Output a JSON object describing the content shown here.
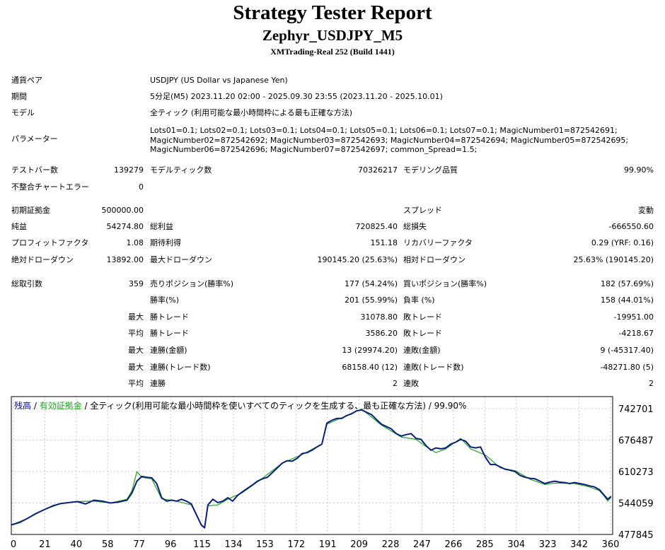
{
  "header": {
    "title": "Strategy Tester Report",
    "expert": "Zephyr_USDJPY_M5",
    "server": "XMTrading-Real 252 (Build 1441)"
  },
  "settings": {
    "symbol_label": "通貨ペア",
    "symbol_value": "USDJPY (US Dollar vs Japanese Yen)",
    "period_label": "期間",
    "period_value": "5分足(M5) 2023.11.20 02:00 - 2025.09.30 23:55 (2023.11.20 - 2025.10.01)",
    "model_label": "モデル",
    "model_value": "全ティック (利用可能な最小時間枠による最も正確な方法)",
    "params_label": "パラメーター",
    "params_value": "Lots01=0.1; Lots02=0.1; Lots03=0.1; Lots04=0.1; Lots05=0.1; Lots06=0.1; Lots07=0.1; MagicNumber01=872542691; MagicNumber02=872542692; MagicNumber03=872542693; MagicNumber04=872542694; MagicNumber05=872542695; MagicNumber06=872542696; MagicNumber07=872542697; common_Spread=1.5;"
  },
  "stats": {
    "bars_label": "テストバー数",
    "bars_value": "139279",
    "ticks_label": "モデルティック数",
    "ticks_value": "70326217",
    "quality_label": "モデリング品質",
    "quality_value": "99.90%",
    "mismatch_label": "不整合チャートエラー",
    "mismatch_value": "0",
    "deposit_label": "初期証拠金",
    "deposit_value": "500000.00",
    "spread_label": "スプレッド",
    "spread_value": "変動",
    "net_label": "純益",
    "net_value": "54274.80",
    "gross_profit_label": "総利益",
    "gross_profit_value": "720825.40",
    "gross_loss_label": "総損失",
    "gross_loss_value": "-666550.60",
    "pf_label": "プロフィットファクタ",
    "pf_value": "1.08",
    "expected_label": "期待利得",
    "expected_value": "151.18",
    "recovery_label": "リカバリーファクタ",
    "recovery_value": "0.29 (YRF: 0.16)",
    "abs_dd_label": "絶対ドローダウン",
    "abs_dd_value": "13892.00",
    "max_dd_label": "最大ドローダウン",
    "max_dd_value": "190145.20 (25.63%)",
    "rel_dd_label": "相対ドローダウン",
    "rel_dd_value": "25.63% (190145.20)",
    "trades_label": "総取引数",
    "trades_value": "359",
    "short_label": "売りポジション(勝率%)",
    "short_value": "177 (54.24%)",
    "long_label": "買いポジション(勝率%)",
    "long_value": "182 (57.69%)",
    "winrate_label": "勝率(%)",
    "winrate_value": "201 (55.99%)",
    "lossrate_label": "負率 (%)",
    "lossrate_value": "158 (44.01%)",
    "max_label": "最大",
    "avg_label": "平均",
    "best_trade_label": "勝トレード",
    "best_trade_value": "31078.80",
    "worst_trade_label": "敗トレード",
    "worst_trade_value": "-19951.00",
    "avg_win_label": "勝トレード",
    "avg_win_value": "3586.20",
    "avg_loss_label": "敗トレード",
    "avg_loss_value": "-4218.67",
    "max_consec_win_money_label": "連勝(金額)",
    "max_consec_win_money_value": "13 (29974.20)",
    "max_consec_loss_money_label": "連敗(金額)",
    "max_consec_loss_money_value": "9 (-45317.40)",
    "max_consec_win_count_label": "連勝(トレード数)",
    "max_consec_win_count_value": "68158.40 (12)",
    "max_consec_loss_count_label": "連敗(トレード数)",
    "max_consec_loss_count_value": "-48271.80 (5)",
    "avg_consec_win_label": "連勝",
    "avg_consec_win_value": "2",
    "avg_consec_loss_label": "連敗",
    "avg_consec_loss_value": "2"
  },
  "legend": {
    "balance": "残高",
    "sep1": " / ",
    "equity": "有効証拠金",
    "rest": " / 全ティック(利用可能な最小時間枠を使いすべてのティックを生成する、最も正確な方法) / 99.90%"
  },
  "colors": {
    "balance": "#0a1f7a",
    "equity": "#20a020",
    "grid": "#c8c8c8"
  },
  "chart_data": {
    "type": "line",
    "x_ticks": [
      "0",
      "21",
      "40",
      "58",
      "77",
      "96",
      "115",
      "134",
      "153",
      "172",
      "191",
      "209",
      "228",
      "247",
      "266",
      "285",
      "304",
      "323",
      "342",
      "360"
    ],
    "y_ticks": [
      "742701",
      "676487",
      "610273",
      "544059",
      "477845"
    ],
    "ylim": [
      477845,
      742701
    ],
    "xlim": [
      0,
      364
    ],
    "series": [
      {
        "name": "残高",
        "points": [
          [
            0,
            498000
          ],
          [
            5,
            503000
          ],
          [
            10,
            512000
          ],
          [
            15,
            522000
          ],
          [
            20,
            530000
          ],
          [
            25,
            538000
          ],
          [
            30,
            543000
          ],
          [
            35,
            545000
          ],
          [
            40,
            547000
          ],
          [
            45,
            542000
          ],
          [
            50,
            550000
          ],
          [
            55,
            548000
          ],
          [
            60,
            544000
          ],
          [
            65,
            546000
          ],
          [
            70,
            550000
          ],
          [
            73,
            565000
          ],
          [
            76,
            590000
          ],
          [
            79,
            600000
          ],
          [
            82,
            598000
          ],
          [
            85,
            597000
          ],
          [
            88,
            585000
          ],
          [
            91,
            555000
          ],
          [
            94,
            548000
          ],
          [
            97,
            550000
          ],
          [
            100,
            548000
          ],
          [
            103,
            552000
          ],
          [
            106,
            548000
          ],
          [
            109,
            542000
          ],
          [
            112,
            520000
          ],
          [
            115,
            498000
          ],
          [
            117,
            492000
          ],
          [
            119,
            540000
          ],
          [
            122,
            552000
          ],
          [
            125,
            545000
          ],
          [
            128,
            548000
          ],
          [
            131,
            555000
          ],
          [
            134,
            548000
          ],
          [
            137,
            560000
          ],
          [
            140,
            568000
          ],
          [
            143,
            575000
          ],
          [
            146,
            582000
          ],
          [
            149,
            590000
          ],
          [
            152,
            595000
          ],
          [
            155,
            598000
          ],
          [
            158,
            608000
          ],
          [
            161,
            618000
          ],
          [
            164,
            628000
          ],
          [
            167,
            633000
          ],
          [
            170,
            632000
          ],
          [
            173,
            638000
          ],
          [
            176,
            648000
          ],
          [
            179,
            650000
          ],
          [
            182,
            655000
          ],
          [
            185,
            662000
          ],
          [
            188,
            668000
          ],
          [
            191,
            712000
          ],
          [
            194,
            718000
          ],
          [
            197,
            722000
          ],
          [
            200,
            722000
          ],
          [
            203,
            728000
          ],
          [
            206,
            732000
          ],
          [
            209,
            738000
          ],
          [
            212,
            740000
          ],
          [
            215,
            735000
          ],
          [
            218,
            730000
          ],
          [
            221,
            720000
          ],
          [
            224,
            710000
          ],
          [
            227,
            705000
          ],
          [
            230,
            700000
          ],
          [
            233,
            690000
          ],
          [
            236,
            685000
          ],
          [
            239,
            688000
          ],
          [
            242,
            690000
          ],
          [
            245,
            680000
          ],
          [
            248,
            678000
          ],
          [
            251,
            665000
          ],
          [
            254,
            655000
          ],
          [
            257,
            660000
          ],
          [
            260,
            658000
          ],
          [
            263,
            660000
          ],
          [
            266,
            668000
          ],
          [
            269,
            672000
          ],
          [
            272,
            678000
          ],
          [
            275,
            674000
          ],
          [
            278,
            662000
          ],
          [
            281,
            660000
          ],
          [
            284,
            662000
          ],
          [
            287,
            640000
          ],
          [
            290,
            625000
          ],
          [
            293,
            625000
          ],
          [
            296,
            620000
          ],
          [
            299,
            615000
          ],
          [
            302,
            613000
          ],
          [
            305,
            610000
          ],
          [
            308,
            602000
          ],
          [
            311,
            598000
          ],
          [
            314,
            596000
          ],
          [
            317,
            595000
          ],
          [
            320,
            590000
          ],
          [
            323,
            585000
          ],
          [
            326,
            588000
          ],
          [
            329,
            590000
          ],
          [
            332,
            588000
          ],
          [
            335,
            587000
          ],
          [
            338,
            585000
          ],
          [
            341,
            587000
          ],
          [
            344,
            585000
          ],
          [
            347,
            583000
          ],
          [
            350,
            580000
          ],
          [
            353,
            578000
          ],
          [
            356,
            572000
          ],
          [
            359,
            560000
          ],
          [
            361,
            552000
          ],
          [
            363,
            558000
          ]
        ]
      },
      {
        "name": "有効証拠金",
        "points": [
          [
            0,
            498000
          ],
          [
            10,
            512000
          ],
          [
            20,
            530000
          ],
          [
            30,
            543000
          ],
          [
            40,
            547000
          ],
          [
            50,
            548000
          ],
          [
            60,
            544000
          ],
          [
            70,
            552000
          ],
          [
            73,
            570000
          ],
          [
            76,
            610000
          ],
          [
            79,
            598000
          ],
          [
            85,
            595000
          ],
          [
            91,
            553000
          ],
          [
            100,
            548000
          ],
          [
            109,
            540000
          ],
          [
            115,
            497000
          ],
          [
            117,
            491000
          ],
          [
            119,
            538000
          ],
          [
            125,
            540000
          ],
          [
            131,
            552000
          ],
          [
            140,
            566000
          ],
          [
            152,
            596000
          ],
          [
            164,
            628000
          ],
          [
            176,
            646000
          ],
          [
            188,
            668000
          ],
          [
            191,
            710000
          ],
          [
            203,
            728000
          ],
          [
            212,
            742000
          ],
          [
            224,
            708000
          ],
          [
            236,
            683000
          ],
          [
            245,
            678000
          ],
          [
            251,
            663000
          ],
          [
            257,
            650000
          ],
          [
            263,
            658000
          ],
          [
            272,
            680000
          ],
          [
            278,
            658000
          ],
          [
            287,
            645000
          ],
          [
            296,
            618000
          ],
          [
            305,
            612000
          ],
          [
            314,
            594000
          ],
          [
            323,
            583000
          ],
          [
            329,
            586000
          ],
          [
            341,
            585000
          ],
          [
            350,
            578000
          ],
          [
            356,
            570000
          ],
          [
            359,
            558000
          ],
          [
            361,
            548000
          ],
          [
            363,
            556000
          ]
        ]
      }
    ]
  }
}
